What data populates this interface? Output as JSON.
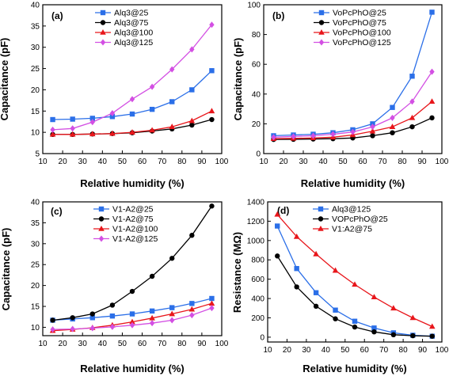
{
  "colors": {
    "blue": "#2b6fe8",
    "black": "#000000",
    "red": "#e8161b",
    "magenta": "#d34fe3"
  },
  "chart_data": [
    {
      "panel": "(a)",
      "type": "line",
      "xlabel": "Relative humidity (%)",
      "ylabel": "Capacitance (pF)",
      "xlim": [
        10,
        100
      ],
      "ylim": [
        5,
        40
      ],
      "xticks": [
        10,
        20,
        30,
        40,
        50,
        60,
        70,
        80,
        90,
        100
      ],
      "yticks": [
        5,
        10,
        15,
        20,
        25,
        30,
        35,
        40
      ],
      "x": [
        15,
        25,
        35,
        45,
        55,
        65,
        75,
        85,
        95
      ],
      "legend_position": "top-right",
      "series": [
        {
          "name": "Alq3@25",
          "color": "#2b6fe8",
          "marker": "square",
          "values": [
            13.0,
            13.1,
            13.3,
            13.7,
            14.3,
            15.4,
            17.2,
            20.0,
            24.5
          ]
        },
        {
          "name": "Alq3@75",
          "color": "#000000",
          "marker": "circle",
          "values": [
            9.5,
            9.5,
            9.6,
            9.7,
            9.9,
            10.3,
            10.8,
            11.7,
            13.0
          ]
        },
        {
          "name": "Alq3@100",
          "color": "#e8161b",
          "marker": "triangle",
          "values": [
            9.5,
            9.5,
            9.6,
            9.7,
            10.0,
            10.5,
            11.3,
            12.7,
            15.0
          ]
        },
        {
          "name": "Alq3@125",
          "color": "#d34fe3",
          "marker": "diamond",
          "values": [
            10.6,
            10.9,
            12.4,
            14.5,
            17.8,
            20.7,
            24.8,
            29.5,
            35.3
          ]
        }
      ]
    },
    {
      "panel": "(b)",
      "type": "line",
      "xlabel": "Relative humidity (%)",
      "ylabel": "Capacitance (pF)",
      "xlim": [
        10,
        100
      ],
      "ylim": [
        0,
        100
      ],
      "xticks": [
        10,
        20,
        30,
        40,
        50,
        60,
        70,
        80,
        90,
        100
      ],
      "yticks": [
        0,
        20,
        40,
        60,
        80,
        100
      ],
      "x": [
        15,
        25,
        35,
        45,
        55,
        65,
        75,
        85,
        95
      ],
      "legend_position": "top-right",
      "series": [
        {
          "name": "VoPcPhO@25",
          "color": "#2b6fe8",
          "marker": "square",
          "values": [
            12,
            12.5,
            13,
            14,
            16,
            20,
            31,
            52,
            95
          ]
        },
        {
          "name": "VoPcPhO@75",
          "color": "#000000",
          "marker": "circle",
          "values": [
            9.5,
            9.6,
            9.8,
            10,
            10.5,
            12,
            14,
            18,
            24
          ]
        },
        {
          "name": "VoPcPhO@100",
          "color": "#e8161b",
          "marker": "triangle",
          "values": [
            10,
            10.2,
            10.5,
            11,
            12.5,
            15,
            18,
            24,
            35
          ]
        },
        {
          "name": "VoPcPhO@125",
          "color": "#d34fe3",
          "marker": "diamond",
          "values": [
            11,
            11.5,
            12,
            13,
            14.5,
            18,
            24,
            35,
            55
          ]
        }
      ]
    },
    {
      "panel": "(c)",
      "type": "line",
      "xlabel": "Relative humidity (%)",
      "ylabel": "Capacitance (pF)",
      "xlim": [
        10,
        100
      ],
      "ylim": [
        8,
        40
      ],
      "xticks": [
        10,
        20,
        30,
        40,
        50,
        60,
        70,
        80,
        90,
        100
      ],
      "yticks": [
        10,
        15,
        20,
        25,
        30,
        35,
        40
      ],
      "x": [
        15,
        25,
        35,
        45,
        55,
        65,
        75,
        85,
        95
      ],
      "legend_position": "top-left",
      "series": [
        {
          "name": "V1-A2@25",
          "color": "#2b6fe8",
          "marker": "square",
          "values": [
            11.7,
            12.0,
            12.3,
            12.7,
            13.2,
            13.9,
            14.7,
            15.7,
            16.9
          ]
        },
        {
          "name": "V1-A2@75",
          "color": "#000000",
          "marker": "circle",
          "values": [
            11.7,
            12.3,
            13.2,
            15.3,
            18.6,
            22.2,
            26.5,
            32.0,
            39.0
          ]
        },
        {
          "name": "V1-A2@100",
          "color": "#e8161b",
          "marker": "triangle",
          "values": [
            9.2,
            9.5,
            9.9,
            10.5,
            11.3,
            12.2,
            13.2,
            14.3,
            15.7
          ]
        },
        {
          "name": "V1-A2@125",
          "color": "#d34fe3",
          "marker": "diamond",
          "values": [
            9.5,
            9.6,
            9.8,
            10.1,
            10.5,
            11.0,
            11.7,
            12.9,
            14.6
          ]
        }
      ]
    },
    {
      "panel": "(d)",
      "type": "line",
      "xlabel": "Relative humidity (%)",
      "ylabel": "Resistance (MΩ)",
      "xlim": [
        10,
        100
      ],
      "ylim": [
        -50,
        1400
      ],
      "xticks": [
        10,
        20,
        30,
        40,
        50,
        60,
        70,
        80,
        90,
        100
      ],
      "yticks": [
        0,
        200,
        400,
        600,
        800,
        1000,
        1200,
        1400
      ],
      "x": [
        15,
        25,
        35,
        45,
        55,
        65,
        75,
        85,
        95
      ],
      "legend_position": "top-right",
      "series": [
        {
          "name": "Alq3@125",
          "color": "#2b6fe8",
          "marker": "square",
          "values": [
            1150,
            710,
            460,
            280,
            165,
            95,
            45,
            20,
            10
          ]
        },
        {
          "name": "VOPcPhO@25",
          "color": "#000000",
          "marker": "circle",
          "values": [
            840,
            520,
            320,
            190,
            105,
            55,
            25,
            15,
            10
          ]
        },
        {
          "name": "V1:A2@75",
          "color": "#e8161b",
          "marker": "triangle",
          "values": [
            1270,
            1040,
            860,
            690,
            545,
            415,
            300,
            200,
            110
          ]
        }
      ]
    }
  ]
}
